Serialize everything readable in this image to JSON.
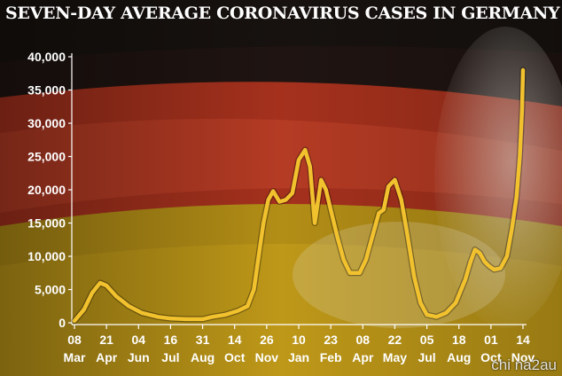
{
  "chart_data": {
    "type": "line",
    "title": "SEVEN-DAY AVERAGE CORONAVIRUS CASES IN GERMANY",
    "xlabel": "",
    "ylabel": "",
    "ylim": [
      0,
      40000
    ],
    "y_ticks": [
      "0",
      "5,000",
      "10,000",
      "15,000",
      "20,000",
      "25,000",
      "30,000",
      "35,000",
      "40,000"
    ],
    "x_ticks": [
      {
        "day": "08",
        "month": "Mar"
      },
      {
        "day": "21",
        "month": "Apr"
      },
      {
        "day": "04",
        "month": "Jun"
      },
      {
        "day": "16",
        "month": "Jul"
      },
      {
        "day": "31",
        "month": "Aug"
      },
      {
        "day": "14",
        "month": "Oct"
      },
      {
        "day": "26",
        "month": "Nov"
      },
      {
        "day": "10",
        "month": "Jan"
      },
      {
        "day": "23",
        "month": "Feb"
      },
      {
        "day": "08",
        "month": "Apr"
      },
      {
        "day": "22",
        "month": "May"
      },
      {
        "day": "05",
        "month": "Jul"
      },
      {
        "day": "18",
        "month": "Aug"
      },
      {
        "day": "01",
        "month": "Oct"
      },
      {
        "day": "14",
        "month": "Nov"
      }
    ],
    "grid": false,
    "line_color": "#f2c12e",
    "series": [
      {
        "points": [
          [
            0,
            300
          ],
          [
            0.3,
            2000
          ],
          [
            0.55,
            4500
          ],
          [
            0.8,
            6000
          ],
          [
            1.0,
            5600
          ],
          [
            1.3,
            4000
          ],
          [
            1.7,
            2500
          ],
          [
            2.1,
            1500
          ],
          [
            2.6,
            900
          ],
          [
            3.0,
            650
          ],
          [
            3.5,
            550
          ],
          [
            4.0,
            550
          ],
          [
            4.3,
            900
          ],
          [
            4.7,
            1200
          ],
          [
            5.1,
            1800
          ],
          [
            5.4,
            2500
          ],
          [
            5.6,
            5000
          ],
          [
            5.75,
            10000
          ],
          [
            5.9,
            15000
          ],
          [
            6.05,
            18500
          ],
          [
            6.2,
            19800
          ],
          [
            6.4,
            18200
          ],
          [
            6.6,
            18500
          ],
          [
            6.8,
            19500
          ],
          [
            7.0,
            24500
          ],
          [
            7.2,
            26000
          ],
          [
            7.35,
            23500
          ],
          [
            7.5,
            15000
          ],
          [
            7.7,
            21500
          ],
          [
            7.85,
            20000
          ],
          [
            8.0,
            17000
          ],
          [
            8.2,
            13000
          ],
          [
            8.4,
            9500
          ],
          [
            8.6,
            7500
          ],
          [
            8.9,
            7500
          ],
          [
            9.1,
            9500
          ],
          [
            9.3,
            13000
          ],
          [
            9.5,
            16500
          ],
          [
            9.65,
            17000
          ],
          [
            9.8,
            20500
          ],
          [
            10.0,
            21500
          ],
          [
            10.2,
            18500
          ],
          [
            10.4,
            13000
          ],
          [
            10.6,
            7000
          ],
          [
            10.8,
            3000
          ],
          [
            11.0,
            1200
          ],
          [
            11.3,
            900
          ],
          [
            11.6,
            1500
          ],
          [
            11.9,
            3000
          ],
          [
            12.2,
            6500
          ],
          [
            12.35,
            9000
          ],
          [
            12.5,
            11000
          ],
          [
            12.65,
            10500
          ],
          [
            12.8,
            9200
          ],
          [
            12.95,
            8500
          ],
          [
            13.1,
            8000
          ],
          [
            13.3,
            8200
          ],
          [
            13.5,
            10000
          ],
          [
            13.65,
            14000
          ],
          [
            13.8,
            19000
          ],
          [
            13.9,
            25000
          ],
          [
            13.97,
            32000
          ],
          [
            14.0,
            38000
          ]
        ]
      }
    ]
  },
  "watermark": "chi na2au"
}
